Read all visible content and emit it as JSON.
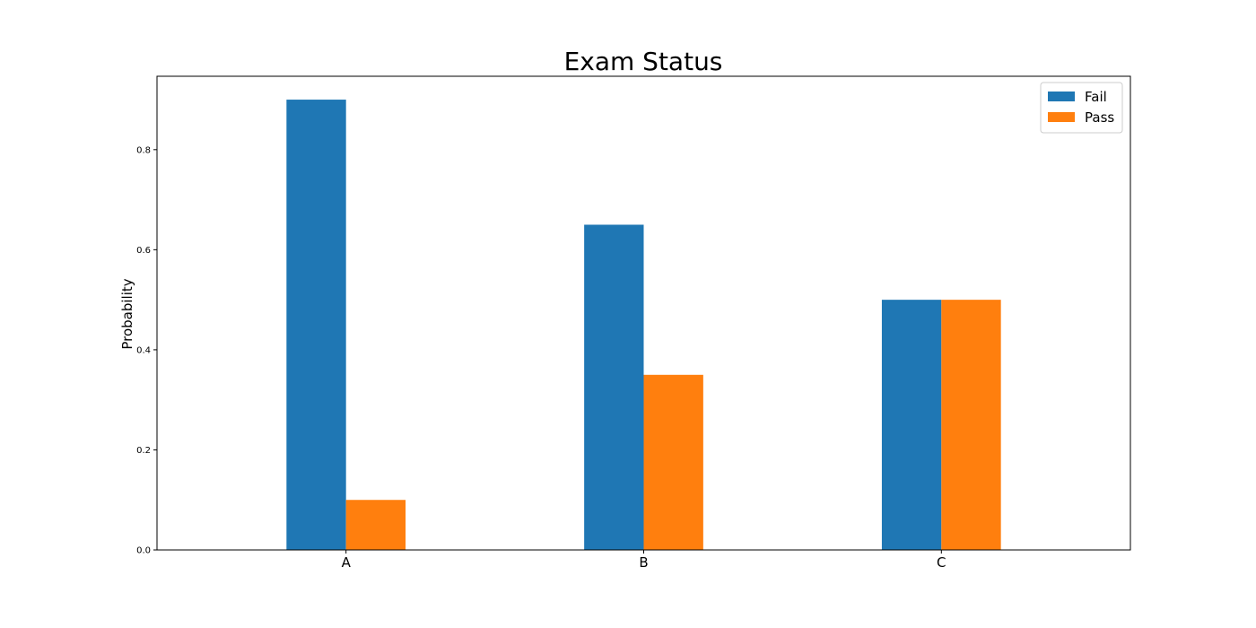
{
  "chart_data": {
    "type": "bar",
    "title": "Exam Status",
    "xlabel": "",
    "ylabel": "Probability",
    "categories": [
      "A",
      "B",
      "C"
    ],
    "series": [
      {
        "name": "Fail",
        "values": [
          0.9,
          0.65,
          0.5
        ],
        "color": "#1f77b4"
      },
      {
        "name": "Pass",
        "values": [
          0.1,
          0.35,
          0.5
        ],
        "color": "#ff7f0e"
      }
    ],
    "ylim": [
      0,
      0.9467
    ],
    "yticks": [
      "0.0",
      "0.2",
      "0.4",
      "0.6",
      "0.8"
    ],
    "grid": false,
    "legend_position": "top-right"
  }
}
